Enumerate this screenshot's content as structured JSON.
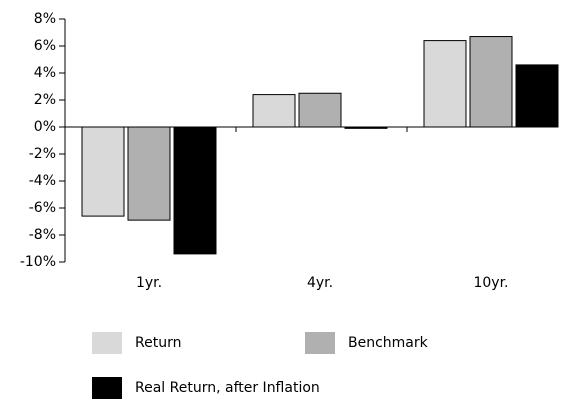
{
  "chart_data": {
    "type": "bar",
    "categories": [
      "1yr.",
      "4yr.",
      "10yr."
    ],
    "series": [
      {
        "name": "Return",
        "color": "#d9d9d9",
        "values": [
          -6.6,
          2.4,
          6.4
        ]
      },
      {
        "name": "Benchmark",
        "color": "#b0b0b0",
        "values": [
          -6.9,
          2.5,
          6.7
        ]
      },
      {
        "name": "Real Return, after Inflation",
        "color": "#000000",
        "values": [
          -9.4,
          -0.1,
          4.6
        ]
      }
    ],
    "ylim": [
      -10,
      8
    ],
    "yticks": [
      {
        "value": -10,
        "label": "-10%"
      },
      {
        "value": -8,
        "label": "-8%"
      },
      {
        "value": -6,
        "label": "-6%"
      },
      {
        "value": -4,
        "label": "-4%"
      },
      {
        "value": -2,
        "label": "-2%"
      },
      {
        "value": 0,
        "label": "0%"
      },
      {
        "value": 2,
        "label": "2%"
      },
      {
        "value": 4,
        "label": "4%"
      },
      {
        "value": 6,
        "label": "6%"
      },
      {
        "value": 8,
        "label": "8%"
      }
    ]
  }
}
